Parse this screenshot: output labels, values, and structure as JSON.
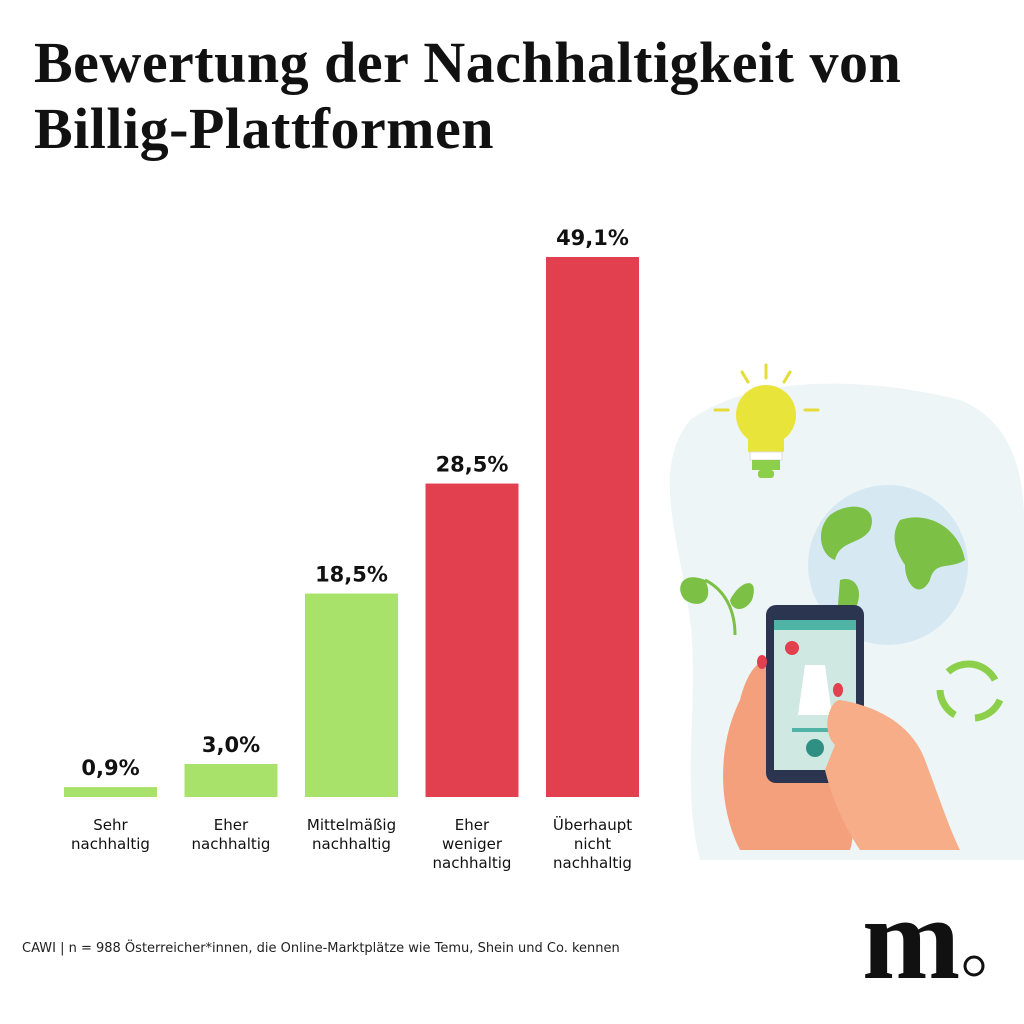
{
  "chart_data": {
    "type": "bar",
    "title": "Bewertung der Nachhaltigkeit von Billig-Plattformen",
    "categories": [
      "Sehr nachhaltig",
      "Eher nachhaltig",
      "Mittelmäßig nachhaltig",
      "Eher weniger nachhaltig",
      "Überhaupt nicht nachhaltig"
    ],
    "values": [
      0.9,
      3.0,
      18.5,
      28.5,
      49.1
    ],
    "value_labels": [
      "0,9%",
      "3,0%",
      "18,5%",
      "28,5%",
      "49,1%"
    ],
    "colors": [
      "#a9e26a",
      "#a9e26a",
      "#a9e26a",
      "#e3404f",
      "#e3404f"
    ],
    "source": "CAWI | n = 988 Österreicher*innen, die Online-Marktplätze wie Temu, Shein und Co. kennen",
    "logo": "m"
  }
}
